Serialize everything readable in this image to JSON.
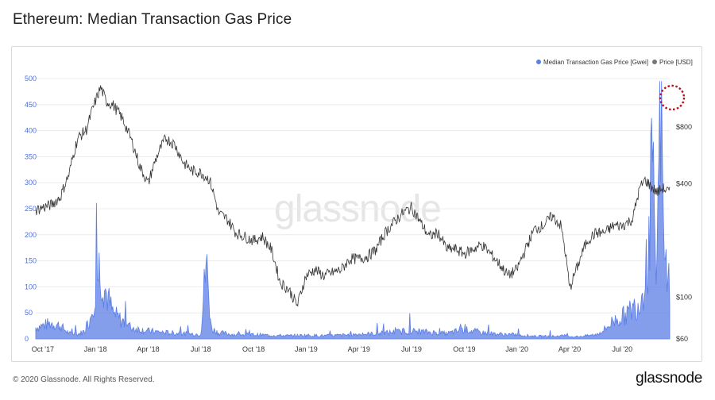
{
  "title": "Ethereum: Median Transaction Gas Price",
  "footer": {
    "copyright": "© 2020 Glassnode. All Rights Reserved.",
    "logo": "glassnode"
  },
  "watermark": "glassnode",
  "colors": {
    "gas": "#5b7ee5",
    "price": "#333333",
    "annotation": "#b5121b",
    "grid": "#ececec"
  },
  "chart_data": {
    "type": "line",
    "title": "Ethereum: Median Transaction Gas Price",
    "xlabel": "",
    "ylabel_left": "",
    "ylabel_right": "",
    "x_ticks": [
      "Oct '17",
      "Jan '18",
      "Apr '18",
      "Jul '18",
      "Oct '18",
      "Jan '19",
      "Apr '19",
      "Jul '19",
      "Oct '19",
      "Jan '20",
      "Apr '20",
      "Jul '20"
    ],
    "x_tick_months": [
      0,
      3,
      6,
      9,
      12,
      15,
      18,
      21,
      24,
      27,
      30,
      33
    ],
    "x_range_months": [
      -0.4,
      35.7
    ],
    "y_left_ticks": [
      0,
      50,
      100,
      150,
      200,
      250,
      300,
      350,
      400,
      450,
      500
    ],
    "y_left_range": [
      0,
      500
    ],
    "y_right_ticks": [
      "$60",
      "$100",
      "$400",
      "$800"
    ],
    "y_right_values": [
      60,
      100,
      400,
      800
    ],
    "y_right_scale": "log",
    "legend": [
      "Median Transaction Gas Price [Gwei]",
      "Price [USD]"
    ],
    "legend_position": "top-right",
    "annotation": "dotted circle around peak gas price",
    "series": [
      {
        "name": "Median Transaction Gas Price [Gwei]",
        "axis": "left",
        "x_months": [
          -0.4,
          0.5,
          1,
          1.5,
          2,
          2.4,
          2.7,
          3.0,
          3.2,
          3.5,
          4,
          4.5,
          5,
          6,
          7,
          8,
          9,
          9.3,
          9.6,
          10,
          11,
          12,
          13,
          14,
          15,
          16,
          17,
          18,
          19,
          20,
          21,
          22,
          23,
          24,
          25,
          26,
          27,
          28,
          29,
          29.8,
          30,
          30.3,
          31,
          31.5,
          32,
          32.5,
          33,
          33.5,
          34,
          34.3,
          34.5,
          34.7,
          34.9,
          35.0,
          35.2,
          35.4,
          35.6,
          35.7
        ],
        "values": [
          22,
          30,
          25,
          10,
          9,
          15,
          40,
          95,
          140,
          100,
          48,
          35,
          22,
          15,
          12,
          10,
          9,
          150,
          20,
          12,
          8,
          8,
          7,
          6,
          7,
          6,
          7,
          9,
          10,
          13,
          15,
          13,
          10,
          18,
          12,
          9,
          8,
          5,
          5,
          6,
          5,
          4,
          6,
          8,
          18,
          35,
          42,
          55,
          70,
          110,
          150,
          370,
          85,
          200,
          480,
          120,
          130,
          100
        ]
      },
      {
        "name": "Price [USD]",
        "axis": "right",
        "x_months": [
          -0.4,
          0,
          0.5,
          1,
          1.5,
          2,
          2.5,
          3,
          3.3,
          3.6,
          4,
          4.5,
          5,
          5.5,
          6,
          6.5,
          7,
          7.5,
          8,
          8.5,
          9,
          9.5,
          10,
          10.5,
          11,
          11.5,
          12,
          12.5,
          13,
          13.5,
          14,
          14.5,
          15,
          15.5,
          16,
          16.5,
          17,
          17.5,
          18,
          18.5,
          19,
          19.5,
          20,
          20.5,
          21,
          21.5,
          22,
          22.5,
          23,
          23.5,
          24,
          24.5,
          25,
          25.5,
          26,
          26.5,
          27,
          27.5,
          28,
          28.5,
          29,
          29.5,
          29.8,
          30,
          30.5,
          31,
          31.5,
          32,
          32.5,
          33,
          33.3,
          33.6,
          34,
          34.3,
          34.6,
          35,
          35.3,
          35.7
        ],
        "values": [
          290,
          300,
          310,
          340,
          450,
          700,
          780,
          1100,
          1300,
          1100,
          1050,
          900,
          700,
          500,
          400,
          560,
          700,
          650,
          520,
          470,
          460,
          420,
          280,
          260,
          220,
          210,
          200,
          210,
          180,
          120,
          110,
          90,
          130,
          140,
          130,
          135,
          140,
          160,
          160,
          165,
          180,
          220,
          250,
          280,
          300,
          250,
          210,
          220,
          180,
          180,
          170,
          180,
          190,
          170,
          150,
          130,
          140,
          180,
          230,
          240,
          270,
          240,
          160,
          110,
          150,
          200,
          220,
          220,
          240,
          240,
          250,
          260,
          380,
          420,
          390,
          360,
          380,
          360
        ]
      }
    ]
  }
}
